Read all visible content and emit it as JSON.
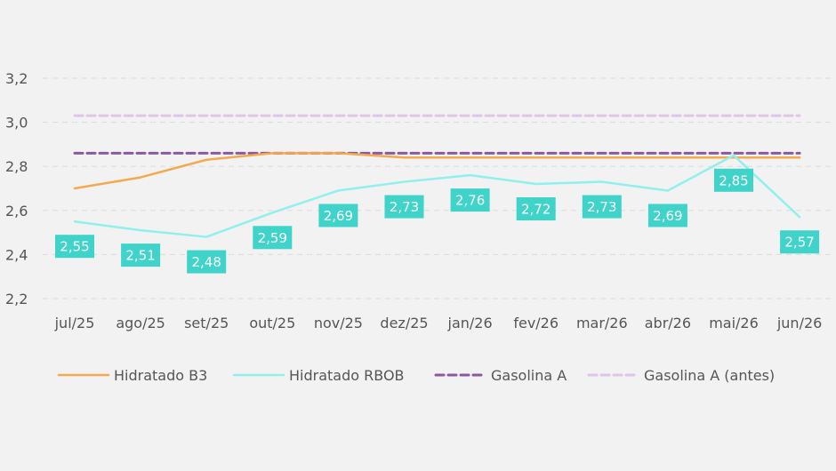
{
  "chart_data": {
    "type": "line",
    "categories": [
      "jul/25",
      "ago/25",
      "set/25",
      "out/25",
      "nov/25",
      "dez/25",
      "jan/26",
      "fev/26",
      "mar/26",
      "abr/26",
      "mai/26",
      "jun/26"
    ],
    "y_ticks": [
      "3,2",
      "3,0",
      "2,8",
      "2,6",
      "2,4",
      "2,2"
    ],
    "ylim": [
      2.2,
      3.2
    ],
    "grid": true,
    "legend_position": "bottom",
    "series": [
      {
        "name": "Hidratado B3",
        "color": "#f5a94e",
        "dash": "solid",
        "values": [
          2.7,
          2.75,
          2.83,
          2.86,
          2.86,
          2.84,
          2.84,
          2.84,
          2.84,
          2.84,
          2.84,
          2.84
        ]
      },
      {
        "name": "Hidratado RBOB",
        "color": "#8ff0ec",
        "dash": "solid",
        "values": [
          2.55,
          2.51,
          2.48,
          2.59,
          2.69,
          2.73,
          2.76,
          2.72,
          2.73,
          2.69,
          2.85,
          2.57
        ],
        "labels": [
          "2,55",
          "2,51",
          "2,48",
          "2,59",
          "2,69",
          "2,73",
          "2,76",
          "2,72",
          "2,73",
          "2,69",
          "2,85",
          "2,57"
        ],
        "label_color": "#3fd3c9"
      },
      {
        "name": "Gasolina A",
        "color": "#8a5a9e",
        "dash": "dashed",
        "values": [
          2.86,
          2.86,
          2.86,
          2.86,
          2.86,
          2.86,
          2.86,
          2.86,
          2.86,
          2.86,
          2.86,
          2.86
        ]
      },
      {
        "name": "Gasolina A (antes)",
        "color": "#ddc6e6",
        "dash": "dashed",
        "values": [
          3.03,
          3.03,
          3.03,
          3.03,
          3.03,
          3.03,
          3.03,
          3.03,
          3.03,
          3.03,
          3.03,
          3.03
        ]
      }
    ]
  }
}
